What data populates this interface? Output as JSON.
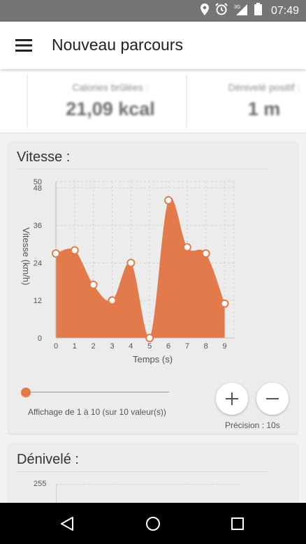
{
  "status_bar": {
    "time": "07:49",
    "network": "3G"
  },
  "app_bar": {
    "title": "Nouveau parcours"
  },
  "stats": [
    {
      "label": ":",
      "value": ""
    },
    {
      "label": "Calories brûlées :",
      "value": "21,09 kcal"
    },
    {
      "label": "Dénivelé positif :",
      "value": "1 m"
    }
  ],
  "speed_card": {
    "title": "Vitesse :",
    "slider_caption": "Affichage de 1 à 10 (sur 10 valeur(s))",
    "precision": "Précision : 10s",
    "slider_position": 0
  },
  "elevation_card": {
    "title": "Dénivelé :",
    "first_tick": "255"
  },
  "colors": {
    "accent": "#e37a4c",
    "area_fill": "#e37a4c"
  },
  "chart_data": {
    "type": "area",
    "xlabel": "Temps (s)",
    "ylabel": "Vitesse (km/h)",
    "x": [
      0,
      1,
      2,
      3,
      4,
      5,
      6,
      7,
      8,
      9
    ],
    "values": [
      27,
      28,
      17,
      12,
      24,
      0,
      44,
      29,
      27,
      11
    ],
    "xlim": [
      0,
      9.5
    ],
    "ylim": [
      0,
      50
    ],
    "yticks": [
      0,
      12,
      24,
      36,
      48,
      50
    ],
    "xticks": [
      0,
      1,
      2,
      3,
      4,
      5,
      6,
      7,
      8,
      9
    ],
    "grid": true
  }
}
